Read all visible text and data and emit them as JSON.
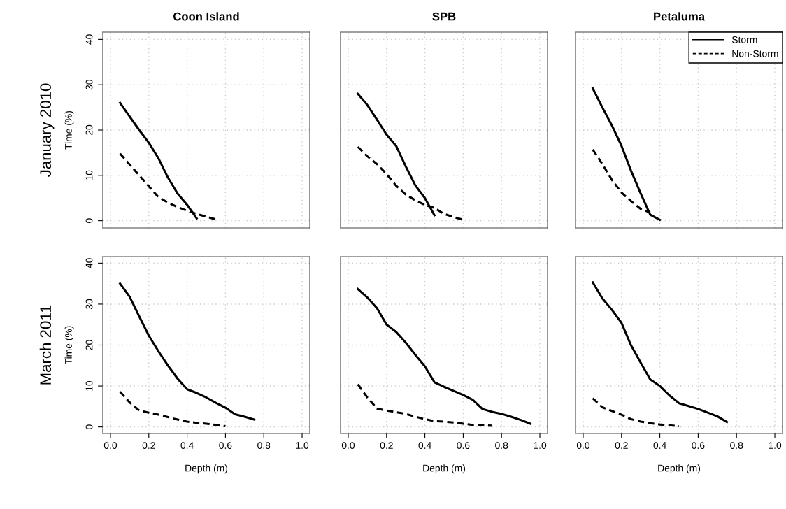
{
  "chart_data": [
    {
      "type": "line",
      "title": "Coon Island",
      "ylabel": "Time (%)",
      "annotations": [
        "January 2010"
      ],
      "tick_labels": "y",
      "grid": true,
      "xlim": [
        -0.04,
        1.04
      ],
      "ylim": [
        -1.6,
        41.6
      ],
      "xticks": [
        {
          "value": 0,
          "label": null
        },
        {
          "value": 0.2,
          "label": null
        },
        {
          "value": 0.4,
          "label": null
        },
        {
          "value": 0.6,
          "label": null
        },
        {
          "value": 0.8,
          "label": null
        },
        {
          "value": 1,
          "label": null
        }
      ],
      "yticks": [
        0,
        10,
        20,
        30,
        40
      ],
      "series": [
        {
          "color": "#000000",
          "line_style": "solid",
          "x": [
            0.05,
            0.1,
            0.15,
            0.2,
            0.25,
            0.3,
            0.35,
            0.4,
            0.45
          ],
          "values": [
            26,
            23,
            20,
            17.2,
            13.8,
            9.5,
            6,
            3.5,
            0.5
          ]
        },
        {
          "color": "#000000",
          "line_style": "dashed",
          "x": [
            0.05,
            0.1,
            0.15,
            0.2,
            0.25,
            0.3,
            0.35,
            0.4,
            0.45,
            0.5,
            0.55
          ],
          "values": [
            14.8,
            12.4,
            10,
            7.6,
            5.2,
            4,
            3,
            2.2,
            1.5,
            0.9,
            0.3
          ]
        }
      ]
    },
    {
      "type": "line",
      "title": "SPB",
      "tick_labels": false,
      "grid": true,
      "xlim": [
        -0.04,
        1.04
      ],
      "ylim": [
        -1.6,
        41.6
      ],
      "xticks": [
        {
          "value": 0,
          "label": null
        },
        {
          "value": 0.2,
          "label": null
        },
        {
          "value": 0.4,
          "label": null
        },
        {
          "value": 0.6,
          "label": null
        },
        {
          "value": 0.8,
          "label": null
        },
        {
          "value": 1,
          "label": null
        }
      ],
      "yticks": [
        0,
        10,
        20,
        30,
        40
      ],
      "series": [
        {
          "color": "#000000",
          "line_style": "solid",
          "x": [
            0.05,
            0.1,
            0.15,
            0.2,
            0.25,
            0.3,
            0.35,
            0.4,
            0.45
          ],
          "values": [
            28,
            25.5,
            22.3,
            19,
            16.5,
            12,
            7.8,
            5,
            1.2
          ]
        },
        {
          "color": "#000000",
          "line_style": "dashed",
          "x": [
            0.05,
            0.1,
            0.15,
            0.2,
            0.25,
            0.3,
            0.35,
            0.4,
            0.45,
            0.5,
            0.55,
            0.6
          ],
          "values": [
            16.3,
            14.2,
            12.5,
            10.3,
            7.7,
            5.8,
            4.5,
            3.5,
            2.8,
            1.5,
            0.8,
            0.2
          ]
        }
      ]
    },
    {
      "type": "line",
      "title": "Petaluma",
      "tick_labels": false,
      "grid": true,
      "legend": "top right",
      "xlim": [
        -0.04,
        1.04
      ],
      "ylim": [
        -1.6,
        41.6
      ],
      "xticks": [
        {
          "value": 0,
          "label": null
        },
        {
          "value": 0.2,
          "label": null
        },
        {
          "value": 0.4,
          "label": null
        },
        {
          "value": 0.6,
          "label": null
        },
        {
          "value": 0.8,
          "label": null
        },
        {
          "value": 1,
          "label": null
        }
      ],
      "yticks": [
        0,
        10,
        20,
        30,
        40
      ],
      "series": [
        {
          "name": "Storm",
          "color": "#000000",
          "line_style": "solid",
          "x": [
            0.05,
            0.1,
            0.15,
            0.2,
            0.25,
            0.3,
            0.35,
            0.4
          ],
          "values": [
            29.2,
            25,
            21,
            16.5,
            11,
            6,
            1.3,
            0.2
          ]
        },
        {
          "name": "Non-Storm",
          "color": "#000000",
          "line_style": "dashed",
          "x": [
            0.05,
            0.1,
            0.15,
            0.2,
            0.25,
            0.3,
            0.35
          ],
          "values": [
            15.7,
            12.5,
            9,
            6.2,
            4.3,
            2.6,
            1.8
          ]
        }
      ]
    },
    {
      "type": "line",
      "ylabel": "Time (%)",
      "xlabel": "Depth (m)",
      "annotations": [
        "March 2011"
      ],
      "grid": true,
      "xlim": [
        -0.04,
        1.04
      ],
      "ylim": [
        -1.6,
        41.6
      ],
      "xticks": [
        {
          "value": 0,
          "label": "0.0"
        },
        {
          "value": 0.2,
          "label": "0.2"
        },
        {
          "value": 0.4,
          "label": "0.4"
        },
        {
          "value": 0.6,
          "label": "0.6"
        },
        {
          "value": 0.8,
          "label": "0.8"
        },
        {
          "value": 1,
          "label": "1.0"
        }
      ],
      "yticks": [
        0,
        10,
        20,
        30,
        40
      ],
      "series": [
        {
          "color": "#000000",
          "line_style": "solid",
          "x": [
            0.05,
            0.1,
            0.15,
            0.2,
            0.25,
            0.3,
            0.35,
            0.4,
            0.45,
            0.5,
            0.55,
            0.6,
            0.65,
            0.7,
            0.75
          ],
          "values": [
            35,
            31.8,
            27,
            22.3,
            18.5,
            15,
            11.8,
            9.2,
            8.3,
            7.2,
            5.9,
            4.7,
            3.1,
            2.5,
            1.8
          ]
        },
        {
          "color": "#000000",
          "line_style": "dashed",
          "x": [
            0.05,
            0.1,
            0.15,
            0.2,
            0.25,
            0.3,
            0.35,
            0.4,
            0.45,
            0.5,
            0.55,
            0.6
          ],
          "values": [
            8.6,
            6,
            4,
            3.5,
            3,
            2.4,
            1.8,
            1.3,
            1,
            0.8,
            0.5,
            0.2
          ]
        }
      ]
    },
    {
      "type": "line",
      "xlabel": "Depth (m)",
      "tick_labels": "x",
      "grid": true,
      "xlim": [
        -0.04,
        1.04
      ],
      "ylim": [
        -1.6,
        41.6
      ],
      "xticks": [
        {
          "value": 0,
          "label": "0.0"
        },
        {
          "value": 0.2,
          "label": "0.2"
        },
        {
          "value": 0.4,
          "label": "0.4"
        },
        {
          "value": 0.6,
          "label": "0.6"
        },
        {
          "value": 0.8,
          "label": "0.8"
        },
        {
          "value": 1,
          "label": "1.0"
        }
      ],
      "yticks": [
        0,
        10,
        20,
        30,
        40
      ],
      "series": [
        {
          "color": "#000000",
          "line_style": "solid",
          "x": [
            0.05,
            0.1,
            0.15,
            0.2,
            0.25,
            0.3,
            0.35,
            0.4,
            0.45,
            0.5,
            0.55,
            0.6,
            0.65,
            0.7,
            0.75,
            0.8,
            0.85,
            0.9,
            0.95
          ],
          "values": [
            33.7,
            31.6,
            29,
            25,
            23.2,
            20.6,
            17.6,
            14.8,
            10.9,
            9.8,
            8.8,
            7.8,
            6.6,
            4.4,
            3.7,
            3.2,
            2.5,
            1.7,
            0.8
          ]
        },
        {
          "color": "#000000",
          "line_style": "dashed",
          "x": [
            0.05,
            0.1,
            0.15,
            0.2,
            0.25,
            0.3,
            0.35,
            0.4,
            0.45,
            0.5,
            0.55,
            0.6,
            0.65,
            0.7,
            0.75
          ],
          "values": [
            10.4,
            7.2,
            4.5,
            4,
            3.6,
            3.2,
            2.5,
            1.9,
            1.4,
            1.3,
            1.1,
            0.8,
            0.5,
            0.4,
            0.3
          ]
        }
      ]
    },
    {
      "type": "line",
      "xlabel": "Depth (m)",
      "tick_labels": "x",
      "grid": true,
      "xlim": [
        -0.04,
        1.04
      ],
      "ylim": [
        -1.6,
        41.6
      ],
      "xticks": [
        {
          "value": 0,
          "label": "0.0"
        },
        {
          "value": 0.2,
          "label": "0.2"
        },
        {
          "value": 0.4,
          "label": "0.4"
        },
        {
          "value": 0.6,
          "label": "0.6"
        },
        {
          "value": 0.8,
          "label": "0.8"
        },
        {
          "value": 1,
          "label": "1.0"
        }
      ],
      "yticks": [
        0,
        10,
        20,
        30,
        40
      ],
      "series": [
        {
          "color": "#000000",
          "line_style": "solid",
          "x": [
            0.05,
            0.1,
            0.15,
            0.2,
            0.25,
            0.3,
            0.35,
            0.4,
            0.45,
            0.5,
            0.55,
            0.6,
            0.65,
            0.7,
            0.75
          ],
          "values": [
            35.3,
            31.4,
            28.6,
            25.4,
            19.9,
            15.7,
            11.6,
            10,
            7.7,
            5.8,
            5.1,
            4.4,
            3.5,
            2.6,
            1.2
          ]
        },
        {
          "color": "#000000",
          "line_style": "dashed",
          "x": [
            0.05,
            0.1,
            0.15,
            0.2,
            0.25,
            0.3,
            0.35,
            0.4,
            0.45,
            0.5
          ],
          "values": [
            7,
            4.8,
            3.9,
            3,
            1.9,
            1.3,
            0.9,
            0.6,
            0.4,
            0.2
          ]
        }
      ]
    }
  ]
}
